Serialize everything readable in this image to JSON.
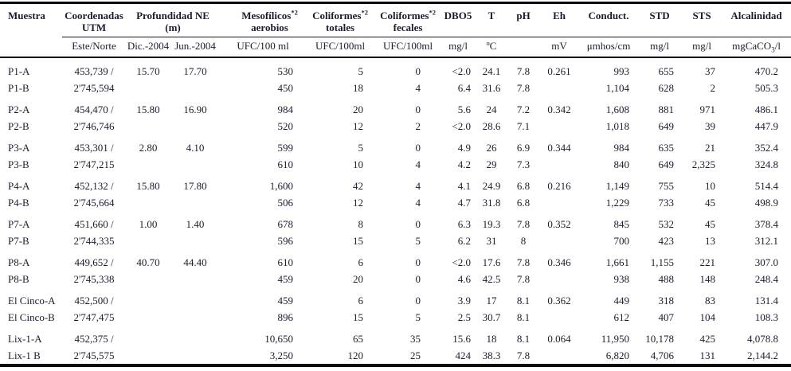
{
  "colors": {
    "text": "#1c1c30",
    "rule": "#0a0a14",
    "background": "#ffffff"
  },
  "table": {
    "columns": [
      {
        "label": "Muestra"
      },
      {
        "label": "Coordenadas",
        "label2": "UTM",
        "unit": "Este/Norte"
      },
      {
        "label": "Profundidad NE",
        "label2": "(m)",
        "unit_a": "Dic.-2004",
        "unit_b": "Jun.-2004"
      },
      {
        "label": "Mesofílicos",
        "sup": "*2",
        "label2": "aerobios",
        "unit": "UFC/100 ml"
      },
      {
        "label": "Coliformes",
        "sup": "*2",
        "label2": "totales",
        "unit": "UFC/100ml"
      },
      {
        "label": "Coliformes",
        "sup": "*2",
        "label2": "fecales",
        "unit": "UFC/100ml"
      },
      {
        "label": "DBO5",
        "unit": "mg/l"
      },
      {
        "label": "T",
        "unit": "ºC"
      },
      {
        "label": "pH",
        "unit": ""
      },
      {
        "label": "Eh",
        "unit": "mV"
      },
      {
        "label": "Conduct.",
        "unit": "μmhos/cm"
      },
      {
        "label": "STD",
        "unit": "mg/l"
      },
      {
        "label": "STS",
        "unit": "mg/l"
      },
      {
        "label": "Alcalinidad",
        "unit": "mgCaCO",
        "unit_sub": "3",
        "unit_end": "/l"
      }
    ],
    "rows": [
      {
        "new_group": false,
        "cells": [
          "P1-A",
          "453,739 /",
          "15.70",
          "17.70",
          "530",
          "5",
          "0",
          "<2.0",
          "24.1",
          "7.8",
          "0.261",
          "993",
          "655",
          "37",
          "470.2"
        ]
      },
      {
        "new_group": false,
        "cells": [
          "P1-B",
          "2'745,594",
          "",
          "",
          "450",
          "18",
          "4",
          "6.4",
          "31.6",
          "7.8",
          "",
          "1,104",
          "628",
          "2",
          "505.3"
        ]
      },
      {
        "new_group": true,
        "cells": [
          "P2-A",
          "454,470 /",
          "15.80",
          "16.90",
          "984",
          "20",
          "0",
          "5.6",
          "24",
          "7.2",
          "0.342",
          "1,608",
          "881",
          "971",
          "486.1"
        ]
      },
      {
        "new_group": false,
        "cells": [
          "P2-B",
          "2'746,746",
          "",
          "",
          "520",
          "12",
          "2",
          "<2.0",
          "28.6",
          "7.1",
          "",
          "1,018",
          "649",
          "39",
          "447.9"
        ]
      },
      {
        "new_group": true,
        "cells": [
          "P3-A",
          "453,301 /",
          "2.80",
          "4.10",
          "599",
          "5",
          "0",
          "4.9",
          "26",
          "6.9",
          "0.344",
          "984",
          "635",
          "21",
          "352.4"
        ]
      },
      {
        "new_group": false,
        "cells": [
          "P3-B",
          "2'747,215",
          "",
          "",
          "610",
          "10",
          "4",
          "4.2",
          "29",
          "7.3",
          "",
          "840",
          "649",
          "2,325",
          "324.8"
        ]
      },
      {
        "new_group": true,
        "cells": [
          "P4-A",
          "452,132 /",
          "15.80",
          "17.80",
          "1,600",
          "42",
          "4",
          "4.1",
          "24.9",
          "6.8",
          "0.216",
          "1,149",
          "755",
          "10",
          "514.4"
        ]
      },
      {
        "new_group": false,
        "cells": [
          "P4-B",
          "2'745,664",
          "",
          "",
          "506",
          "12",
          "4",
          "4.7",
          "31.8",
          "6.8",
          "",
          "1,229",
          "733",
          "45",
          "498.9"
        ]
      },
      {
        "new_group": true,
        "cells": [
          "P7-A",
          "451,660 /",
          "1.00",
          "1.40",
          "678",
          "8",
          "0",
          "6.3",
          "19.3",
          "7.8",
          "0.352",
          "845",
          "532",
          "45",
          "378.4"
        ]
      },
      {
        "new_group": false,
        "cells": [
          "P7-B",
          "2'744,335",
          "",
          "",
          "596",
          "15",
          "5",
          "6.2",
          "31",
          "8",
          "",
          "700",
          "423",
          "13",
          "312.1"
        ]
      },
      {
        "new_group": true,
        "cells": [
          "P8-A",
          "449,652 /",
          "40.70",
          "44.40",
          "610",
          "6",
          "0",
          "<2.0",
          "17.6",
          "7.8",
          "0.346",
          "1,661",
          "1,155",
          "221",
          "307.0"
        ]
      },
      {
        "new_group": false,
        "cells": [
          "P8-B",
          "2'745,338",
          "",
          "",
          "459",
          "20",
          "0",
          "4.6",
          "42.5",
          "7.8",
          "",
          "938",
          "488",
          "148",
          "248.4"
        ]
      },
      {
        "new_group": true,
        "cells": [
          "El Cinco-A",
          "452,500 /",
          "",
          "",
          "459",
          "6",
          "0",
          "3.9",
          "17",
          "8.1",
          "0.362",
          "449",
          "318",
          "83",
          "131.4"
        ]
      },
      {
        "new_group": false,
        "cells": [
          "El Cinco-B",
          "2'747,475",
          "",
          "",
          "896",
          "15",
          "5",
          "2.5",
          "30.7",
          "8.1",
          "",
          "612",
          "407",
          "104",
          "108.3"
        ]
      },
      {
        "new_group": true,
        "cells": [
          "Lix-1-A",
          "452,375 /",
          "",
          "",
          "10,650",
          "65",
          "35",
          "15.6",
          "18",
          "8.1",
          "0.064",
          "11,950",
          "10,178",
          "425",
          "4,078.8"
        ]
      },
      {
        "new_group": false,
        "cells": [
          "Lix-1 B",
          "2'745,575",
          "",
          "",
          "3,250",
          "120",
          "25",
          "424",
          "38.3",
          "7.8",
          "",
          "6,820",
          "4,706",
          "131",
          "2,144.2"
        ]
      }
    ]
  }
}
